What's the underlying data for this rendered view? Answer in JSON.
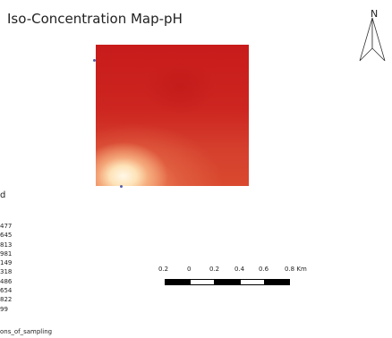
{
  "title": "Iso-Concentration Map-pH",
  "north_arrow": {
    "letter": "N",
    "icon": "north-arrow-icon"
  },
  "raster_colors": {
    "high": "#c81b1b",
    "mid": "#e8744f",
    "low": "#fff8e8"
  },
  "legend": {
    "title": "d",
    "entries": [
      "477",
      "645",
      "813",
      "981",
      "149",
      "318",
      "486",
      "654",
      "822",
      "99"
    ],
    "last_label": "ons_of_sampling"
  },
  "scale_bar": {
    "labels": [
      "0.2",
      "0",
      "0.2",
      "0.4",
      "0.6",
      "0.8 Km"
    ]
  }
}
